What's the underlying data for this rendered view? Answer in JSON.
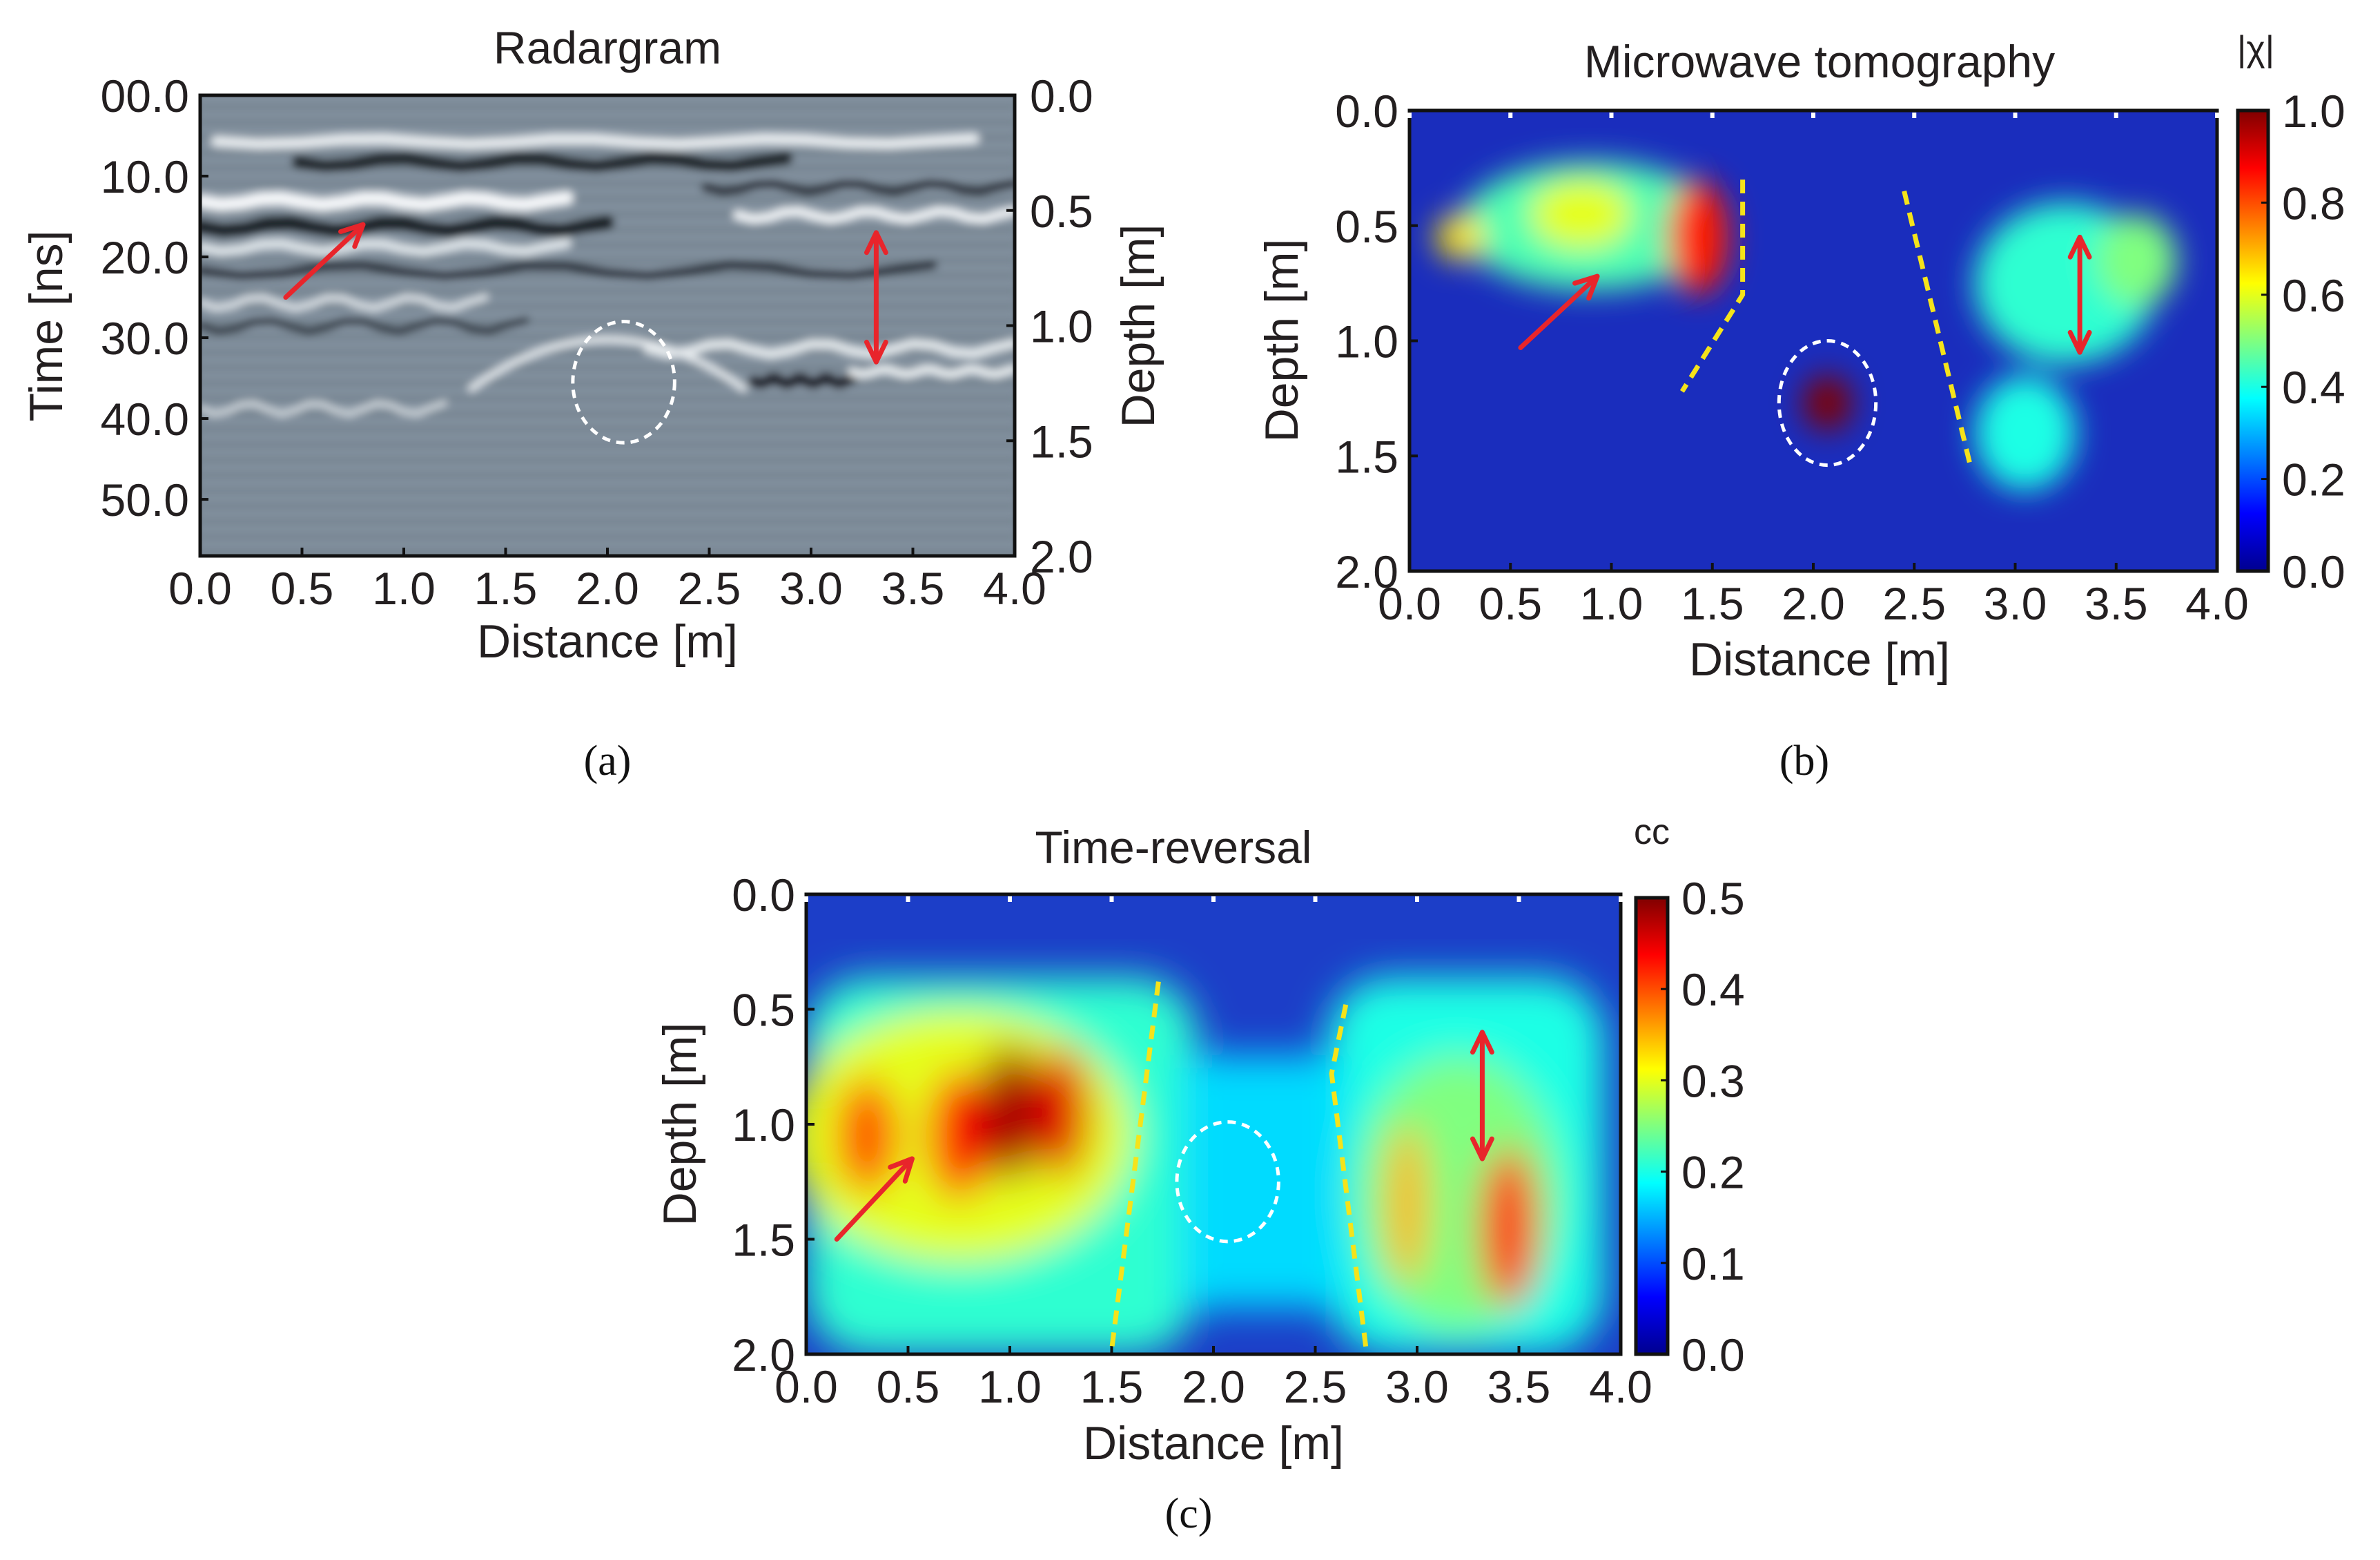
{
  "figure": {
    "labels": {
      "a": "(a)",
      "b": "(b)",
      "c": "(c)"
    }
  },
  "chart_data": [
    {
      "id": "a",
      "type": "heatmap",
      "title": "Radargram",
      "xlabel": "Distance [m]",
      "ylabel": "Time [ns]",
      "y2label": "Depth [m]",
      "xlim": [
        0,
        4
      ],
      "ylim": [
        0,
        57
      ],
      "y2lim": [
        0,
        2
      ],
      "xticks": [
        "0.0",
        "0.5",
        "1.0",
        "1.5",
        "2.0",
        "2.5",
        "3.0",
        "3.5",
        "4.0"
      ],
      "yticks": [
        "00.0",
        "10.0",
        "20.0",
        "30.0",
        "40.0",
        "50.0"
      ],
      "y2ticks": [
        "0.0",
        "0.5",
        "1.0",
        "1.5",
        "2.0"
      ],
      "colormap": "grayscale",
      "annotations": {
        "arrow": {
          "from": [
            0.42,
            25
          ],
          "to": [
            0.8,
            16
          ],
          "color": "#e8252b"
        },
        "double_arrow": {
          "x": 3.32,
          "y1": 17,
          "y2": 33,
          "color": "#e8252b"
        },
        "circle": {
          "cx": 2.08,
          "cy": 35.5,
          "rx": 0.25,
          "ry": 7.5,
          "color": "#ffffff"
        }
      }
    },
    {
      "id": "b",
      "type": "heatmap",
      "title": "Microwave tomography",
      "xlabel": "Distance [m]",
      "ylabel": "Depth [m]",
      "xlim": [
        0,
        4
      ],
      "ylim": [
        0,
        2
      ],
      "xticks": [
        "0.0",
        "0.5",
        "1.0",
        "1.5",
        "2.0",
        "2.5",
        "3.0",
        "3.5",
        "4.0"
      ],
      "yticks": [
        "0.0",
        "0.5",
        "1.0",
        "1.5",
        "2.0"
      ],
      "colorbar": {
        "label": "|χ|",
        "range": [
          0,
          1
        ],
        "ticks": [
          "0.0",
          "0.2",
          "0.4",
          "0.6",
          "0.8",
          "1.0"
        ]
      },
      "colormap": "jet",
      "blobs": [
        {
          "x": 0.9,
          "y": 0.5,
          "sx": 0.65,
          "sy": 0.28,
          "v": 0.45
        },
        {
          "x": 0.25,
          "y": 0.55,
          "sx": 0.12,
          "sy": 0.1,
          "v": 0.65
        },
        {
          "x": 0.85,
          "y": 0.45,
          "sx": 0.25,
          "sy": 0.15,
          "v": 0.6
        },
        {
          "x": 1.43,
          "y": 0.55,
          "sx": 0.15,
          "sy": 0.25,
          "v": 0.85
        },
        {
          "x": 2.07,
          "y": 1.27,
          "sx": 0.12,
          "sy": 0.12,
          "v": 1.0
        },
        {
          "x": 3.25,
          "y": 0.75,
          "sx": 0.45,
          "sy": 0.35,
          "v": 0.42
        },
        {
          "x": 3.05,
          "y": 1.4,
          "sx": 0.25,
          "sy": 0.25,
          "v": 0.4
        },
        {
          "x": 3.6,
          "y": 0.65,
          "sx": 0.2,
          "sy": 0.2,
          "v": 0.5
        }
      ],
      "annotations": {
        "arrow": {
          "from": [
            0.55,
            1.03
          ],
          "to": [
            0.93,
            0.72
          ],
          "color": "#e8252b"
        },
        "double_arrow": {
          "x": 3.32,
          "y1": 0.55,
          "y2": 1.05,
          "color": "#e8252b"
        },
        "circle": {
          "cx": 2.07,
          "cy": 1.27,
          "rx": 0.24,
          "ry": 0.27,
          "color": "#ffffff"
        },
        "dashed_lines": [
          [
            [
              1.65,
              0.3
            ],
            [
              1.65,
              0.8
            ],
            [
              1.35,
              1.22
            ]
          ],
          [
            [
              2.45,
              0.35
            ],
            [
              2.78,
              1.55
            ]
          ]
        ]
      }
    },
    {
      "id": "c",
      "type": "heatmap",
      "title": "Time-reversal",
      "xlabel": "Distance [m]",
      "ylabel": "Depth [m]",
      "xlim": [
        0,
        4
      ],
      "ylim": [
        0,
        2
      ],
      "xticks": [
        "0.0",
        "0.5",
        "1.0",
        "1.5",
        "2.0",
        "2.5",
        "3.0",
        "3.5",
        "4.0"
      ],
      "yticks": [
        "0.0",
        "0.5",
        "1.0",
        "1.5",
        "2.0"
      ],
      "colorbar": {
        "label": "cc",
        "range": [
          0,
          0.5
        ],
        "ticks": [
          "0.0",
          "0.1",
          "0.2",
          "0.3",
          "0.4",
          "0.5"
        ]
      },
      "colormap": "jet",
      "blobs": [
        {
          "x": 0.75,
          "y": 1.05,
          "sx": 0.85,
          "sy": 0.55,
          "v": 0.3
        },
        {
          "x": 0.3,
          "y": 1.05,
          "sx": 0.15,
          "sy": 0.25,
          "v": 0.4
        },
        {
          "x": 0.75,
          "y": 1.05,
          "sx": 0.15,
          "sy": 0.28,
          "v": 0.43
        },
        {
          "x": 1.0,
          "y": 0.95,
          "sx": 0.15,
          "sy": 0.3,
          "v": 0.48
        },
        {
          "x": 1.25,
          "y": 0.95,
          "sx": 0.14,
          "sy": 0.28,
          "v": 0.45
        },
        {
          "x": 3.2,
          "y": 1.3,
          "sx": 0.5,
          "sy": 0.6,
          "v": 0.25
        },
        {
          "x": 2.95,
          "y": 1.35,
          "sx": 0.1,
          "sy": 0.35,
          "v": 0.35
        },
        {
          "x": 3.45,
          "y": 1.45,
          "sx": 0.14,
          "sy": 0.35,
          "v": 0.42
        }
      ],
      "annotations": {
        "arrow": {
          "from": [
            0.15,
            1.5
          ],
          "to": [
            0.52,
            1.15
          ],
          "color": "#e8252b"
        },
        "double_arrow": {
          "x": 3.32,
          "y1": 0.6,
          "y2": 1.15,
          "color": "#e8252b"
        },
        "circle": {
          "cx": 2.07,
          "cy": 1.25,
          "rx": 0.25,
          "ry": 0.26,
          "color": "#ffffff"
        },
        "dashed_lines": [
          [
            [
              1.73,
              0.38
            ],
            [
              1.5,
              1.98
            ]
          ],
          [
            [
              2.65,
              0.48
            ],
            [
              2.58,
              0.78
            ],
            [
              2.75,
              1.98
            ]
          ]
        ]
      }
    }
  ]
}
